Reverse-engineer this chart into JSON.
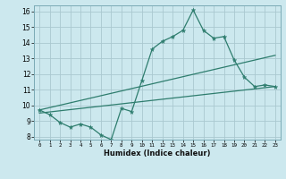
{
  "xlabel": "Humidex (Indice chaleur)",
  "bg_color": "#cce8ee",
  "grid_color": "#aac8d0",
  "line_color": "#2e7d6e",
  "xlim": [
    -0.5,
    23.5
  ],
  "ylim": [
    7.8,
    16.4
  ],
  "yticks": [
    8,
    9,
    10,
    11,
    12,
    13,
    14,
    15,
    16
  ],
  "xticks": [
    0,
    1,
    2,
    3,
    4,
    5,
    6,
    7,
    8,
    9,
    10,
    11,
    12,
    13,
    14,
    15,
    16,
    17,
    18,
    19,
    20,
    21,
    22,
    23
  ],
  "series1_x": [
    0,
    1,
    2,
    3,
    4,
    5,
    6,
    7,
    8,
    9,
    10,
    11,
    12,
    13,
    14,
    15,
    16,
    17,
    18,
    19,
    20,
    21,
    22,
    23
  ],
  "series1_y": [
    9.7,
    9.4,
    8.9,
    8.6,
    8.8,
    8.6,
    8.1,
    7.8,
    9.8,
    9.6,
    11.6,
    13.6,
    14.1,
    14.4,
    14.8,
    16.1,
    14.8,
    14.3,
    14.4,
    12.9,
    11.8,
    11.2,
    11.3,
    11.2
  ],
  "series2_x": [
    0,
    23
  ],
  "series2_y": [
    9.5,
    11.2
  ],
  "series3_x": [
    0,
    23
  ],
  "series3_y": [
    9.7,
    13.2
  ]
}
